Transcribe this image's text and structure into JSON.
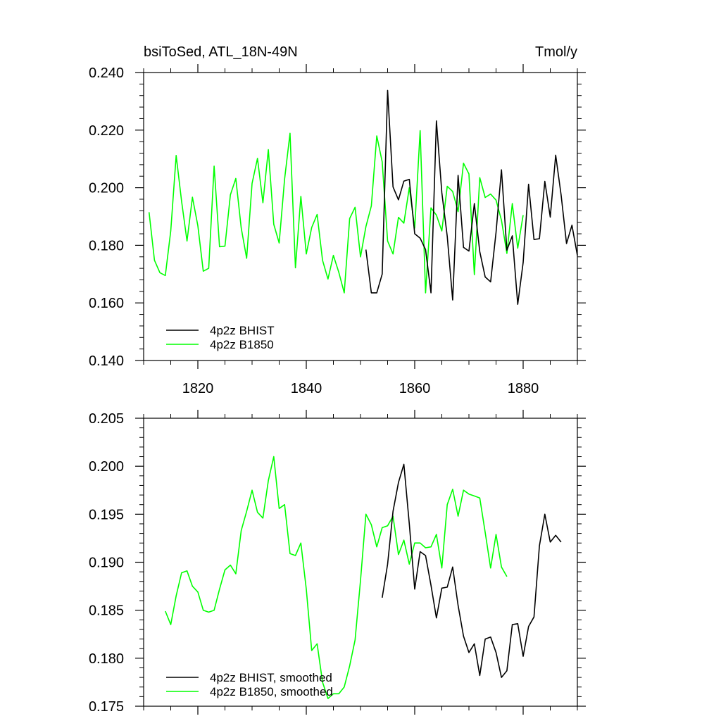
{
  "chart_data": [
    {
      "type": "line",
      "title": "bsiToSed, ATL_18N-49N",
      "units": "Tmol/y",
      "xlabel": "",
      "ylabel": "",
      "xlim": [
        1810,
        1890
      ],
      "ylim": [
        0.14,
        0.24
      ],
      "xticks": [
        1820,
        1840,
        1860,
        1880
      ],
      "xtick_labels": [
        "1820",
        "1840",
        "1860",
        "1880"
      ],
      "yticks": [
        0.14,
        0.16,
        0.18,
        0.2,
        0.22,
        0.24
      ],
      "ytick_labels": [
        "0.140",
        "0.160",
        "0.180",
        "0.200",
        "0.220",
        "0.240"
      ],
      "grid": false,
      "legend_position": "bottom-left",
      "series": [
        {
          "name": "4p2z BHIST",
          "color": "#000000",
          "x": [
            1851,
            1852,
            1853,
            1854,
            1855,
            1856,
            1857,
            1858,
            1859,
            1860,
            1861,
            1862,
            1863,
            1864,
            1865,
            1866,
            1867,
            1868,
            1869,
            1870,
            1871,
            1872,
            1873,
            1874,
            1875,
            1876,
            1877,
            1878,
            1879,
            1880,
            1881,
            1882,
            1883,
            1884,
            1885,
            1886,
            1887,
            1888,
            1889,
            1890
          ],
          "values": [
            0.1785,
            0.1635,
            0.1635,
            0.17,
            0.2338,
            0.2003,
            0.1958,
            0.2023,
            0.2029,
            0.184,
            0.1825,
            0.1785,
            0.1635,
            0.2232,
            0.1983,
            0.1831,
            0.161,
            0.2043,
            0.1793,
            0.178,
            0.1945,
            0.1778,
            0.169,
            0.1673,
            0.1845,
            0.2062,
            0.1783,
            0.1833,
            0.1595,
            0.174,
            0.2012,
            0.182,
            0.1823,
            0.2022,
            0.1898,
            0.2113,
            0.1975,
            0.1806,
            0.187,
            0.1765
          ]
        },
        {
          "name": "4p2z B1850",
          "color": "#00ff00",
          "x": [
            1811,
            1812,
            1813,
            1814,
            1815,
            1816,
            1817,
            1818,
            1819,
            1820,
            1821,
            1822,
            1823,
            1824,
            1825,
            1826,
            1827,
            1828,
            1829,
            1830,
            1831,
            1832,
            1833,
            1834,
            1835,
            1836,
            1837,
            1838,
            1839,
            1840,
            1841,
            1842,
            1843,
            1844,
            1845,
            1846,
            1847,
            1848,
            1849,
            1850,
            1851,
            1852,
            1853,
            1854,
            1855,
            1856,
            1857,
            1858,
            1859,
            1860,
            1861,
            1862,
            1863,
            1864,
            1865,
            1866,
            1867,
            1868,
            1869,
            1870,
            1871,
            1872,
            1873,
            1874,
            1875,
            1876,
            1877,
            1878,
            1879,
            1880
          ],
          "values": [
            0.1915,
            0.1748,
            0.1705,
            0.1695,
            0.185,
            0.2112,
            0.1953,
            0.1815,
            0.1967,
            0.1868,
            0.171,
            0.172,
            0.2075,
            0.1795,
            0.1797,
            0.1975,
            0.2032,
            0.186,
            0.1755,
            0.2015,
            0.2102,
            0.1948,
            0.2132,
            0.1873,
            0.1808,
            0.203,
            0.2189,
            0.1722,
            0.197,
            0.177,
            0.1862,
            0.1907,
            0.1748,
            0.1683,
            0.1765,
            0.1706,
            0.1635,
            0.1893,
            0.1932,
            0.176,
            0.1865,
            0.1937,
            0.218,
            0.209,
            0.1815,
            0.177,
            0.1897,
            0.1877,
            0.2,
            0.186,
            0.2198,
            0.1635,
            0.193,
            0.1905,
            0.185,
            0.2005,
            0.1987,
            0.1917,
            0.2085,
            0.2048,
            0.1698,
            0.2035,
            0.1966,
            0.1978,
            0.1957,
            0.1887,
            0.1772,
            0.1945,
            0.179,
            0.1905
          ]
        }
      ]
    },
    {
      "type": "line",
      "title": "",
      "xlabel": "",
      "ylabel": "",
      "xlim": [
        1810,
        1890
      ],
      "ylim": [
        0.175,
        0.205
      ],
      "xticks": [
        1820,
        1840,
        1860,
        1880
      ],
      "yticks": [
        0.175,
        0.18,
        0.185,
        0.19,
        0.195,
        0.2,
        0.205
      ],
      "ytick_labels": [
        "0.175",
        "0.180",
        "0.185",
        "0.190",
        "0.195",
        "0.200",
        "0.205"
      ],
      "grid": false,
      "legend_position": "bottom-left",
      "series": [
        {
          "name": "4p2z BHIST, smoothed",
          "color": "#000000",
          "x": [
            1854,
            1855,
            1856,
            1857,
            1858,
            1859,
            1860,
            1861,
            1862,
            1863,
            1864,
            1865,
            1866,
            1867,
            1868,
            1869,
            1870,
            1871,
            1872,
            1873,
            1874,
            1875,
            1876,
            1877,
            1878,
            1879,
            1880,
            1881,
            1882,
            1883,
            1884,
            1885,
            1886,
            1887
          ],
          "values": [
            0.1863,
            0.1898,
            0.1953,
            0.1983,
            0.2002,
            0.194,
            0.1872,
            0.1911,
            0.1907,
            0.1876,
            0.1842,
            0.1873,
            0.1874,
            0.1895,
            0.1855,
            0.1823,
            0.1806,
            0.1815,
            0.1782,
            0.182,
            0.1822,
            0.1806,
            0.178,
            0.1787,
            0.1835,
            0.1836,
            0.1802,
            0.1833,
            0.1843,
            0.1917,
            0.195,
            0.1921,
            0.1928,
            0.1921
          ]
        },
        {
          "name": "4p2z B1850, smoothed",
          "color": "#00ff00",
          "x": [
            1814,
            1815,
            1816,
            1817,
            1818,
            1819,
            1820,
            1821,
            1822,
            1823,
            1824,
            1825,
            1826,
            1827,
            1828,
            1829,
            1830,
            1831,
            1832,
            1833,
            1834,
            1835,
            1836,
            1837,
            1838,
            1839,
            1840,
            1841,
            1842,
            1843,
            1844,
            1845,
            1846,
            1847,
            1848,
            1849,
            1850,
            1851,
            1852,
            1853,
            1854,
            1855,
            1856,
            1857,
            1858,
            1859,
            1860,
            1861,
            1862,
            1863,
            1864,
            1865,
            1866,
            1867,
            1868,
            1869,
            1870,
            1871,
            1872,
            1873,
            1874,
            1875,
            1876,
            1877
          ],
          "values": [
            0.1849,
            0.1835,
            0.1865,
            0.1889,
            0.1891,
            0.1875,
            0.1869,
            0.185,
            0.1848,
            0.185,
            0.1872,
            0.1892,
            0.1897,
            0.1888,
            0.1933,
            0.1953,
            0.1975,
            0.1952,
            0.1946,
            0.1985,
            0.201,
            0.1956,
            0.196,
            0.1909,
            0.1907,
            0.192,
            0.1872,
            0.1808,
            0.1815,
            0.1775,
            0.1758,
            0.1763,
            0.1763,
            0.177,
            0.1792,
            0.1819,
            0.1881,
            0.195,
            0.1939,
            0.1916,
            0.1936,
            0.1938,
            0.1948,
            0.1908,
            0.1923,
            0.1898,
            0.192,
            0.192,
            0.1915,
            0.1916,
            0.1929,
            0.1894,
            0.196,
            0.1976,
            0.1948,
            0.1975,
            0.1971,
            0.1969,
            0.1967,
            0.1931,
            0.1894,
            0.1929,
            0.1895,
            0.1885
          ]
        }
      ]
    }
  ]
}
